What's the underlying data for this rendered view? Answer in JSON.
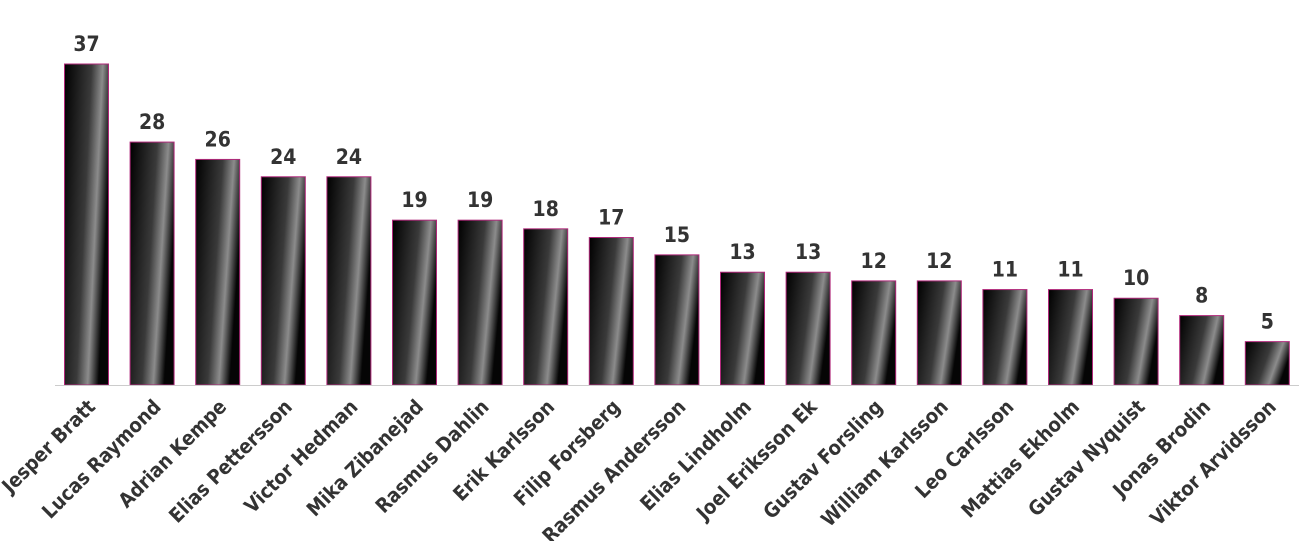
{
  "chart_data": {
    "type": "bar",
    "title": "",
    "xlabel": "",
    "ylabel": "",
    "ylim": [
      0,
      37
    ],
    "grid": false,
    "categories": [
      "Jesper Bratt",
      "Lucas Raymond",
      "Adrian Kempe",
      "Elias Pettersson",
      "Victor Hedman",
      "Mika Zibanejad",
      "Rasmus Dahlin",
      "Erik Karlsson",
      "Filip Forsberg",
      "Rasmus Andersson",
      "Elias Lindholm",
      "Joel Eriksson Ek",
      "Gustav Forsling",
      "William Karlsson",
      "Leo Carlsson",
      "Mattias Ekholm",
      "Gustav Nyquist",
      "Jonas Brodin",
      "Viktor Arvidsson"
    ],
    "values": [
      37,
      28,
      26,
      24,
      24,
      19,
      19,
      18,
      17,
      15,
      13,
      13,
      12,
      12,
      11,
      11,
      10,
      8,
      5
    ],
    "colors": {
      "bar_dark": "#000000",
      "bar_mid": "#3a3a3a",
      "bar_highlight": "#8c8c8c",
      "bar_stroke": "#b0287a",
      "baseline": "#cccccc",
      "text": "#333333"
    }
  }
}
